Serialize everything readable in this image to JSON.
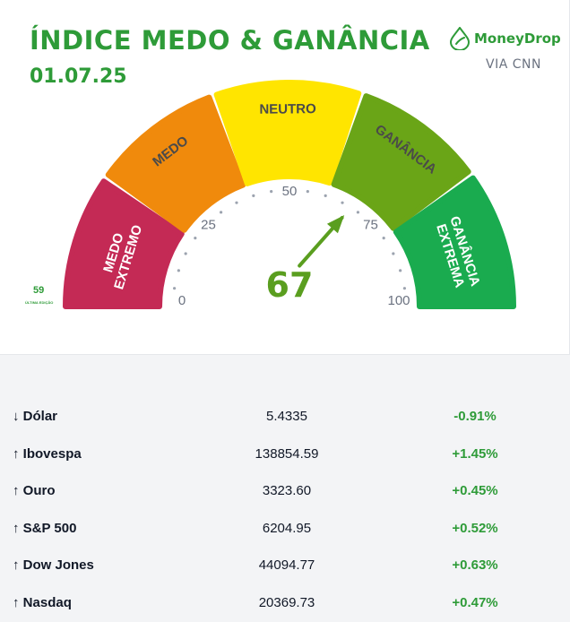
{
  "header": {
    "title": "ÍNDICE MEDO & GANÂNCIA",
    "date": "01.07.25",
    "brand": "MoneyDrop",
    "via": "VIA CNN",
    "logo_icon": "leaf-drop-icon"
  },
  "gauge": {
    "value": 67,
    "value_label": "67",
    "segments": [
      {
        "label": "MEDO EXTREMO",
        "color": "#c42a55"
      },
      {
        "label": "MEDO",
        "color": "#f08a0c"
      },
      {
        "label": "NEUTRO",
        "color": "#ffe500"
      },
      {
        "label": "GANÂNCIA",
        "color": "#6aa517"
      },
      {
        "label": "GANÂNCIA EXTREMA",
        "color": "#1aab4f"
      }
    ],
    "ticks": [
      "0",
      "25",
      "50",
      "75",
      "100"
    ],
    "previous_value": "59",
    "previous_label": "ÚLTIMA EDIÇÃO",
    "arrow_color": "#5a9e1f"
  },
  "market": [
    {
      "arrow": "↓",
      "name": "Dólar",
      "value": "5.4335",
      "change": "-0.91%",
      "color": "#2e9b38"
    },
    {
      "arrow": "↑",
      "name": "Ibovespa",
      "value": "138854.59",
      "change": "+1.45%",
      "color": "#2e9b38"
    },
    {
      "arrow": "↑",
      "name": "Ouro",
      "value": "3323.60",
      "change": "+0.45%",
      "color": "#2e9b38"
    },
    {
      "arrow": "↑",
      "name": "S&P 500",
      "value": "6204.95",
      "change": "+0.52%",
      "color": "#2e9b38"
    },
    {
      "arrow": "↑",
      "name": "Dow Jones",
      "value": "44094.77",
      "change": "+0.63%",
      "color": "#2e9b38"
    },
    {
      "arrow": "↑",
      "name": "Nasdaq",
      "value": "20369.73",
      "change": "+0.47%",
      "color": "#2e9b38"
    }
  ]
}
